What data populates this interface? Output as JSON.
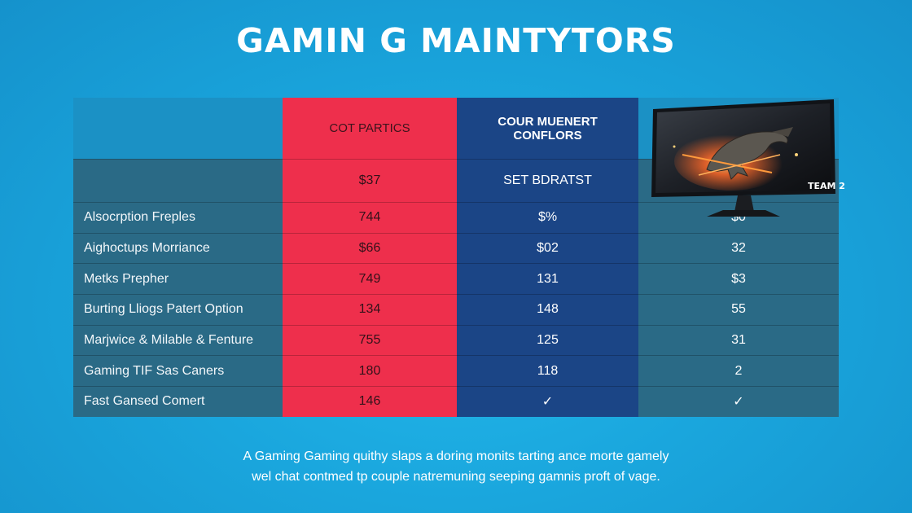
{
  "title": "GAMIN G MAINTYTORS",
  "table": {
    "headers": [
      "",
      "COT PARTICS",
      "COUR MUENERT\nCONFLORS",
      ""
    ],
    "price_row": [
      "",
      "$37",
      "SET BDRATST",
      ""
    ],
    "rows": [
      [
        "Alsocrption Freples",
        "744",
        "$%",
        "$0"
      ],
      [
        "Aighoctups Morriance",
        "$66",
        "$02",
        "32"
      ],
      [
        "Metks Prepher",
        "749",
        "131",
        "$3"
      ],
      [
        "Burting Lliogs Patert Option",
        "134",
        "148",
        "55"
      ],
      [
        "Marjwice & Milable & Fenture",
        "755",
        "125",
        "31"
      ],
      [
        "Gaming TIF Sas Caners",
        "180",
        "118",
        "2"
      ],
      [
        "Fast Gansed Comert",
        "146",
        "✓",
        "✓"
      ]
    ]
  },
  "monitor": {
    "icon": "gaming-monitor",
    "badge": "TEAM 2"
  },
  "footer": {
    "line1": "A Gaming Gaming quithy slaps a doring monits tarting ance morte gamely",
    "line2": "wel chat contmed tp couple natremuning seeping gamnis proft of vage."
  },
  "colors": {
    "background": "#1aa6dd",
    "red_column": "#ee2f4c",
    "navy_column": "#1b4586",
    "row_bg": "#2a6a86"
  }
}
